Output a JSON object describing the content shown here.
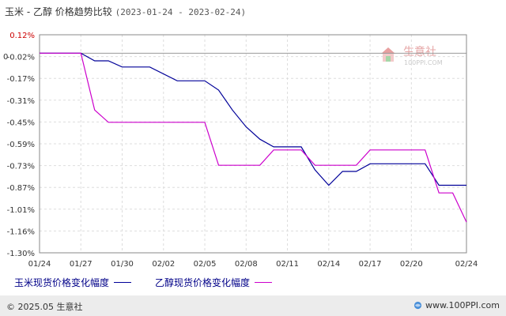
{
  "title": {
    "main": "玉米 - 乙醇 价格趋势比较",
    "range": "(2023-01-24 - 2023-02-24)"
  },
  "zero_label": "0",
  "watermark": {
    "name": "生意社",
    "url": "100PPI.COM",
    "icon": "house-logo-icon",
    "colors": {
      "red": "#e05050",
      "green": "#4caf50"
    }
  },
  "legend": {
    "items": [
      {
        "label": "玉米现货价格变化幅度",
        "color": "#000099"
      },
      {
        "label": "乙醇现货价格变化幅度",
        "color": "#cc00cc"
      }
    ]
  },
  "footer": {
    "copyright": "© 2025.05 生意社",
    "site": "www.100PPI.com",
    "icon": "globe-logo-icon"
  },
  "chart_data": {
    "type": "line",
    "x_tick_labels": [
      "01/24",
      "01/27",
      "01/30",
      "02/02",
      "02/05",
      "02/08",
      "02/11",
      "02/14",
      "02/17",
      "02/20",
      "02/24"
    ],
    "x_tick_days": [
      0,
      3,
      6,
      9,
      12,
      15,
      18,
      21,
      24,
      27,
      31
    ],
    "y_tick_labels": [
      "0.12%",
      "-0.02%",
      "-0.17%",
      "-0.31%",
      "-0.45%",
      "-0.59%",
      "-0.73%",
      "-0.87%",
      "-1.01%",
      "-1.16%",
      "-1.30%"
    ],
    "ylim": [
      -1.3,
      0.12
    ],
    "xlim": [
      0,
      31
    ],
    "grid": true,
    "legend_position": "bottom",
    "series": [
      {
        "name": "玉米现货价格变化幅度",
        "color": "#000099",
        "points": [
          [
            0,
            0
          ],
          [
            3,
            0
          ],
          [
            4,
            -0.05
          ],
          [
            5,
            -0.05
          ],
          [
            6,
            -0.09
          ],
          [
            8,
            -0.09
          ],
          [
            10,
            -0.18
          ],
          [
            12,
            -0.18
          ],
          [
            13,
            -0.24
          ],
          [
            14,
            -0.37
          ],
          [
            15,
            -0.48
          ],
          [
            16,
            -0.56
          ],
          [
            17,
            -0.61
          ],
          [
            19,
            -0.61
          ],
          [
            20,
            -0.76
          ],
          [
            21,
            -0.86
          ],
          [
            22,
            -0.77
          ],
          [
            23,
            -0.77
          ],
          [
            24,
            -0.72
          ],
          [
            28,
            -0.72
          ],
          [
            29,
            -0.86
          ],
          [
            31,
            -0.86
          ]
        ]
      },
      {
        "name": "乙醇现货价格变化幅度",
        "color": "#cc00cc",
        "points": [
          [
            0,
            0
          ],
          [
            3,
            0
          ],
          [
            4,
            -0.37
          ],
          [
            5,
            -0.45
          ],
          [
            12,
            -0.45
          ],
          [
            13,
            -0.73
          ],
          [
            16,
            -0.73
          ],
          [
            17,
            -0.63
          ],
          [
            19,
            -0.63
          ],
          [
            20,
            -0.73
          ],
          [
            23,
            -0.73
          ],
          [
            24,
            -0.63
          ],
          [
            28,
            -0.63
          ],
          [
            29,
            -0.91
          ],
          [
            30,
            -0.91
          ],
          [
            31,
            -1.1
          ]
        ]
      }
    ]
  }
}
